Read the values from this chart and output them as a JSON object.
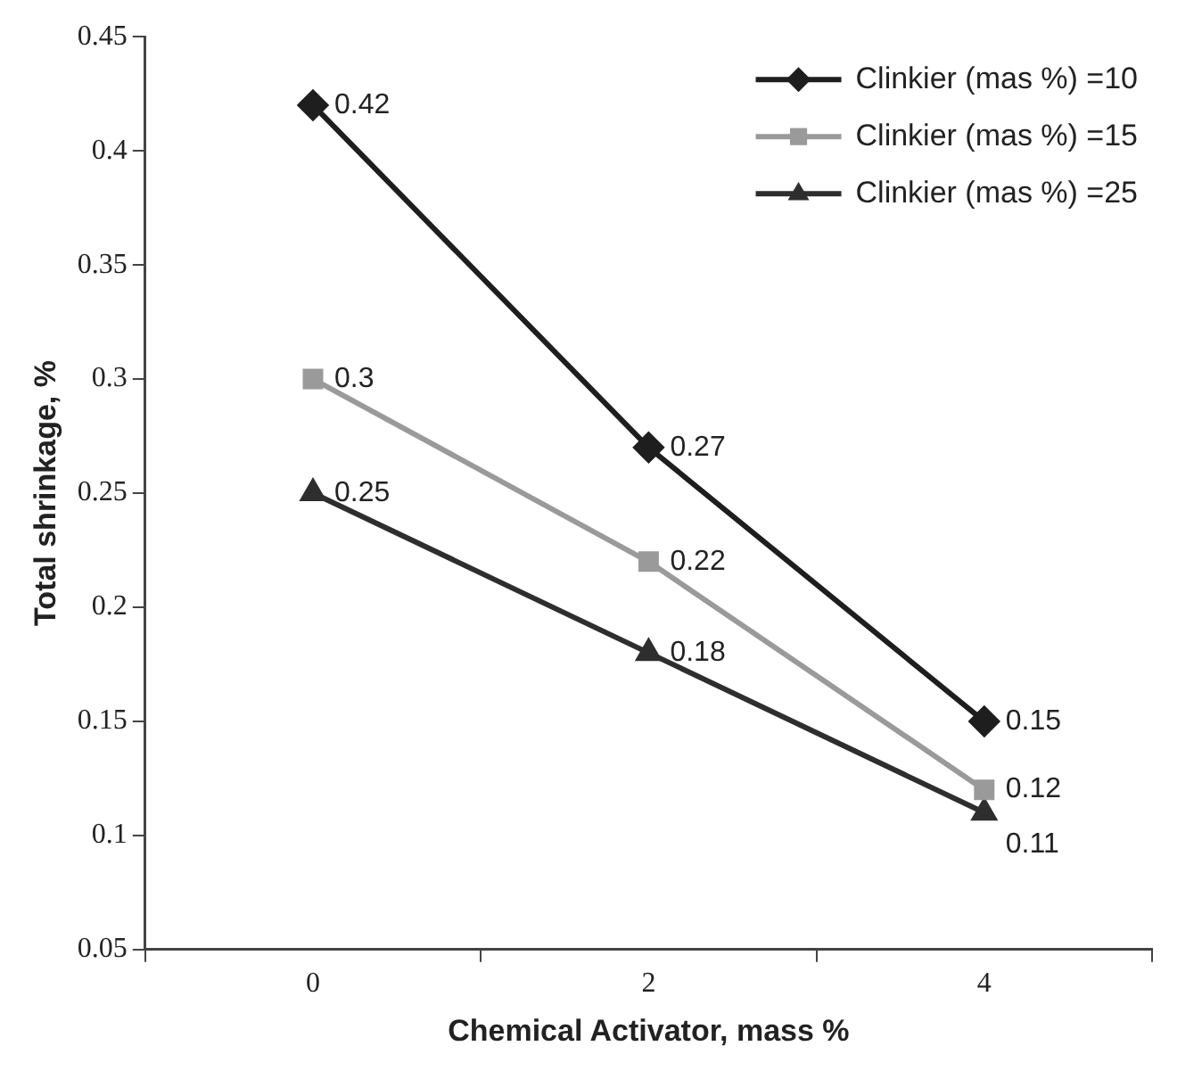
{
  "chart_data": {
    "type": "line",
    "xlabel": "Chemical Activator, mass %",
    "ylabel": "Total shrinkage, %",
    "categories": [
      "0",
      "2",
      "4"
    ],
    "series": [
      {
        "name": "Clinkier (mas %) =10",
        "color": "#1e1e1e",
        "marker": "diamond",
        "values": [
          0.42,
          0.27,
          0.15
        ]
      },
      {
        "name": "Clinkier (mas %) =15",
        "color": "#9a9a9a",
        "marker": "square",
        "values": [
          0.3,
          0.22,
          0.12
        ]
      },
      {
        "name": "Clinkier (mas %) =25",
        "color": "#2e2e2e",
        "marker": "triangle",
        "values": [
          0.25,
          0.18,
          0.11
        ]
      }
    ],
    "ylim": [
      0.05,
      0.45
    ],
    "yticks": [
      0.05,
      0.1,
      0.15,
      0.2,
      0.25,
      0.3,
      0.35,
      0.4,
      0.45
    ],
    "grid": false,
    "legend": "top right",
    "data_labels": true
  }
}
